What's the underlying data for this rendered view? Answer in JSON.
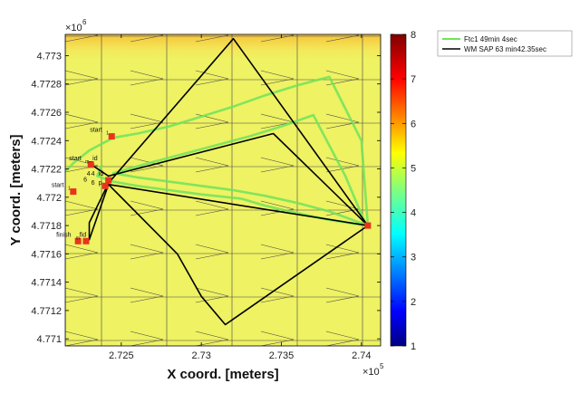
{
  "chart_data": {
    "type": "line",
    "xlabel": "X coord. [meters]",
    "ylabel": "Y coord. [meters]",
    "x_multiplier": "×10",
    "x_multiplier_exp": "5",
    "y_multiplier": "×10",
    "y_multiplier_exp": "6",
    "xlim": [
      272150,
      274120
    ],
    "ylim": [
      4770950,
      4773150
    ],
    "x_ticks": [
      {
        "value": 272500,
        "label": "2.725"
      },
      {
        "value": 273000,
        "label": "2.73"
      },
      {
        "value": 273500,
        "label": "2.735"
      },
      {
        "value": 274000,
        "label": "2.74"
      }
    ],
    "y_ticks": [
      {
        "value": 4771000,
        "label": "4.771"
      },
      {
        "value": 4771200,
        "label": "4.7712"
      },
      {
        "value": 4771400,
        "label": "4.7714"
      },
      {
        "value": 4771600,
        "label": "4.7716"
      },
      {
        "value": 4771800,
        "label": "4.7718"
      },
      {
        "value": 4772000,
        "label": "4.772"
      },
      {
        "value": 4772200,
        "label": "4.7722"
      },
      {
        "value": 4772400,
        "label": "4.7724"
      },
      {
        "value": 4772600,
        "label": "4.7726"
      },
      {
        "value": 4772800,
        "label": "4.7728"
      },
      {
        "value": 4773000,
        "label": "4.773"
      }
    ],
    "grid": false,
    "colorbar": {
      "min": 1,
      "max": 8,
      "ticks": [
        {
          "value": 1,
          "label": "1"
        },
        {
          "value": 2,
          "label": "2"
        },
        {
          "value": 3,
          "label": "3"
        },
        {
          "value": 4,
          "label": "4"
        },
        {
          "value": 5,
          "label": "5"
        },
        {
          "value": 6,
          "label": "6"
        },
        {
          "value": 7,
          "label": "7"
        },
        {
          "value": 8,
          "label": "8"
        }
      ]
    },
    "legend_position": "outside-top-right",
    "series": [
      {
        "name": "Ftc1 49min 4sec",
        "color": "#6fe35a",
        "x": [
          272150,
          272200,
          272300,
          272450,
          272600,
          272800,
          273000,
          273200,
          273400,
          273600,
          273800,
          274000,
          274040,
          273800,
          273600,
          273400,
          273200,
          273000,
          272800,
          272600,
          272450,
          272700,
          273000,
          273300,
          273500,
          273700,
          273900,
          274030,
          273800,
          273550,
          273400,
          273250,
          273000,
          272800,
          272600,
          272450,
          272350,
          272380
        ],
        "y": [
          4772180,
          4772240,
          4772330,
          4772420,
          4772450,
          4772500,
          4772570,
          4772640,
          4772720,
          4772790,
          4772850,
          4772400,
          4771800,
          4771900,
          4771960,
          4772010,
          4772050,
          4772080,
          4772110,
          4772140,
          4772170,
          4772250,
          4772340,
          4772430,
          4772500,
          4772580,
          4772150,
          4771800,
          4771840,
          4771900,
          4771940,
          4771990,
          4772020,
          4772050,
          4772080,
          4772110,
          4772150,
          4772230
        ]
      },
      {
        "name": "WM SAP 63 min42.35sec",
        "color": "#000000",
        "x": [
          272300,
          272300,
          272420,
          273200,
          274040,
          272420,
          272300,
          272420,
          272850,
          273000,
          273150,
          274040,
          273450,
          272420,
          272300
        ],
        "y": [
          4771700,
          4771820,
          4772100,
          4773120,
          4771800,
          4772090,
          4771700,
          4772090,
          4771600,
          4771300,
          4771100,
          4771800,
          4772450,
          4772150,
          4772240
        ]
      }
    ],
    "points": [
      {
        "x": 272440,
        "y": 4772430,
        "label": "start",
        "sub": "1"
      },
      {
        "x": 272310,
        "y": 4772230,
        "label": "start",
        "sub": "m",
        "label2": "_id"
      },
      {
        "x": 272200,
        "y": 4772040,
        "label": "start",
        "sub": "1"
      },
      {
        "x": 272420,
        "y": 4772120,
        "label": "4",
        "sub": ""
      },
      {
        "x": 272400,
        "y": 4772080,
        "label": "6",
        "sub": ""
      },
      {
        "x": 272230,
        "y": 4771690,
        "label": "finish",
        "sub": "m",
        "label2": "fid"
      },
      {
        "x": 272280,
        "y": 4771690,
        "label": "",
        "sub": ""
      },
      {
        "x": 274040,
        "y": 4771800,
        "label": "",
        "sub": ""
      }
    ],
    "annotation_labels": [
      "4",
      "id",
      "6",
      "p"
    ]
  }
}
